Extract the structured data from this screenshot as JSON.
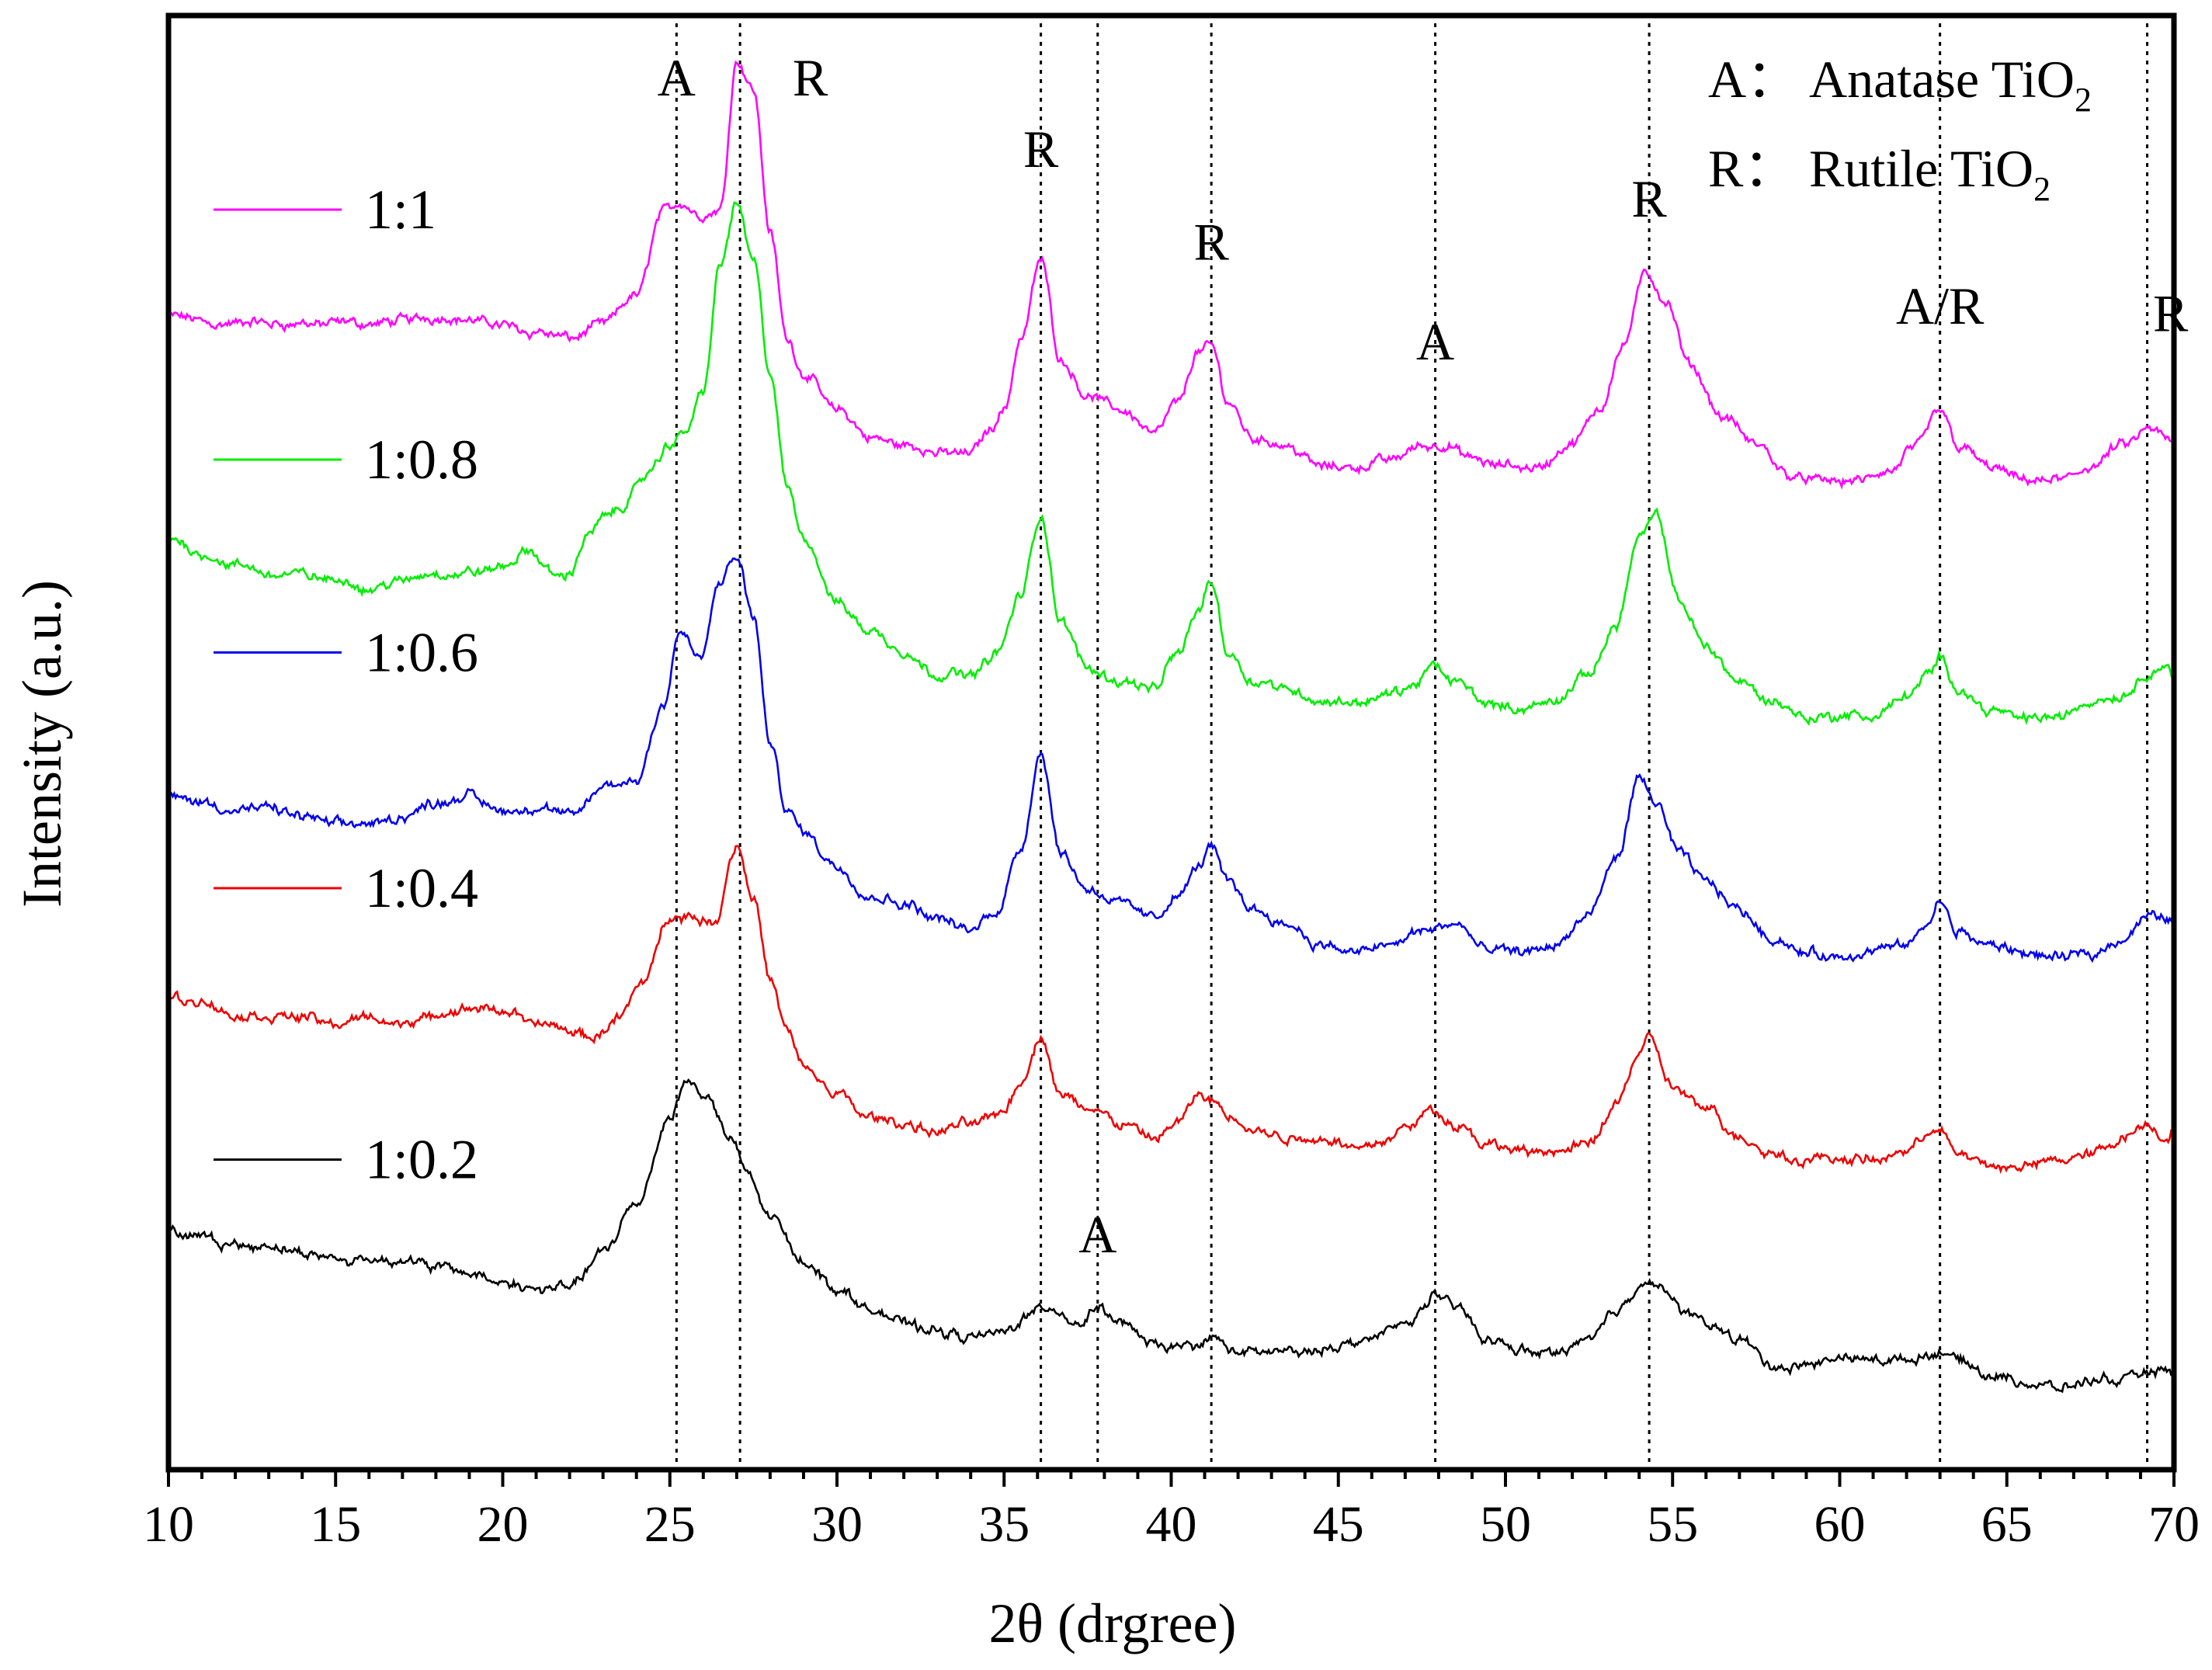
{
  "chart_data": {
    "type": "line",
    "xlabel": "2θ (drgree)",
    "ylabel": "Intensity (a.u.)",
    "xlim": [
      10,
      70
    ],
    "xticks": [
      10,
      15,
      20,
      25,
      30,
      35,
      40,
      45,
      50,
      55,
      60,
      65,
      70
    ],
    "ylim": [
      0,
      10
    ],
    "grid": false,
    "key": [
      {
        "symbol": "A",
        "sep": "：",
        "text": "Anatase TiO",
        "sub": "2"
      },
      {
        "symbol": "R",
        "sep": "：",
        "text": "Rutile TiO",
        "sub": "2"
      }
    ],
    "reference_lines": [
      25.2,
      27.1,
      36.1,
      37.8,
      41.2,
      47.9,
      54.3,
      63.0,
      69.2
    ],
    "peak_labels": [
      {
        "text": "A",
        "x": 25.2,
        "y": 9.55
      },
      {
        "text": "R",
        "x": 29.2,
        "y": 9.55
      },
      {
        "text": "R",
        "x": 36.1,
        "y": 9.05
      },
      {
        "text": "R",
        "x": 41.2,
        "y": 8.4
      },
      {
        "text": "A",
        "x": 47.9,
        "y": 7.7
      },
      {
        "text": "R",
        "x": 54.3,
        "y": 8.7
      },
      {
        "text": "A/R",
        "x": 63.0,
        "y": 7.95
      },
      {
        "text": "R",
        "x": 69.9,
        "y": 7.9
      },
      {
        "text": "A",
        "x": 37.8,
        "y": 1.45
      }
    ],
    "series": [
      {
        "name": "1:1",
        "color": "#ff00ff",
        "legend_y": 8.75,
        "x": [
          10,
          12,
          14,
          16,
          18,
          20,
          21,
          22,
          23,
          24,
          24.8,
          25.3,
          26,
          26.5,
          27,
          27.5,
          28,
          28.5,
          29,
          30,
          31,
          32,
          33,
          34,
          34.5,
          35,
          35.5,
          36.1,
          36.7,
          37.5,
          38.5,
          39.5,
          40.2,
          40.8,
          41.2,
          41.7,
          42.5,
          43.5,
          44.5,
          45.5,
          46.5,
          47.5,
          48.2,
          49,
          49.8,
          51,
          52,
          52.8,
          53.5,
          54.2,
          54.8,
          55.5,
          56.5,
          57.5,
          58.5,
          59.5,
          60.5,
          61.5,
          62.3,
          63,
          63.6,
          64.5,
          65.5,
          66.5,
          67.5,
          68.5,
          69.2,
          69.8,
          70
        ],
        "y": [
          8.0,
          7.95,
          7.95,
          7.95,
          8.0,
          7.95,
          7.9,
          7.85,
          7.95,
          8.15,
          8.75,
          8.8,
          8.7,
          8.75,
          9.8,
          9.6,
          8.6,
          7.85,
          7.6,
          7.35,
          7.15,
          7.1,
          7.05,
          7.05,
          7.2,
          7.35,
          7.85,
          8.4,
          7.7,
          7.45,
          7.35,
          7.2,
          7.4,
          7.75,
          7.8,
          7.4,
          7.15,
          7.1,
          6.95,
          6.95,
          7.0,
          7.1,
          7.1,
          7.0,
          6.95,
          6.95,
          7.1,
          7.35,
          7.8,
          8.3,
          8.1,
          7.65,
          7.3,
          7.1,
          6.9,
          6.85,
          6.85,
          6.9,
          7.1,
          7.35,
          7.1,
          6.95,
          6.85,
          6.85,
          6.95,
          7.1,
          7.2,
          7.15,
          7.1
        ]
      },
      {
        "name": "1:0.8",
        "color": "#00ee00",
        "legend_y": 7.0,
        "x": [
          10,
          11,
          12,
          13,
          14,
          15,
          16,
          17,
          18,
          19,
          20,
          20.8,
          21.5,
          22,
          22.5,
          23,
          23.5,
          24,
          24.5,
          25,
          25.5,
          26,
          26.5,
          27,
          27.5,
          28,
          28.5,
          29,
          30,
          31,
          32,
          33,
          34,
          34.8,
          35.5,
          36.1,
          36.7,
          37.5,
          38.5,
          39.5,
          40.2,
          40.8,
          41.2,
          41.7,
          42.5,
          43.5,
          44.5,
          45.5,
          46.5,
          47.2,
          47.8,
          48.5,
          49.5,
          50.5,
          51.5,
          52.5,
          53.3,
          54.0,
          54.5,
          55.2,
          56,
          57,
          58,
          59,
          60,
          61,
          62,
          62.7,
          63,
          63.5,
          64.5,
          65.5,
          66.5,
          67.5,
          68.5,
          69.2,
          69.7,
          70
        ],
        "y": [
          6.45,
          6.35,
          6.25,
          6.2,
          6.2,
          6.15,
          6.1,
          6.15,
          6.2,
          6.2,
          6.25,
          6.35,
          6.2,
          6.2,
          6.45,
          6.6,
          6.65,
          6.8,
          6.95,
          7.1,
          7.2,
          7.5,
          8.35,
          8.8,
          8.4,
          7.6,
          6.8,
          6.45,
          6.0,
          5.8,
          5.65,
          5.5,
          5.5,
          5.65,
          6.05,
          6.6,
          5.85,
          5.55,
          5.45,
          5.4,
          5.65,
          5.95,
          6.15,
          5.65,
          5.45,
          5.4,
          5.3,
          5.3,
          5.35,
          5.4,
          5.55,
          5.45,
          5.3,
          5.25,
          5.3,
          5.5,
          5.85,
          6.45,
          6.6,
          6.0,
          5.7,
          5.45,
          5.3,
          5.2,
          5.2,
          5.2,
          5.35,
          5.5,
          5.6,
          5.4,
          5.25,
          5.2,
          5.2,
          5.3,
          5.35,
          5.5,
          5.55,
          5.5
        ]
      },
      {
        "name": "1:0.6",
        "color": "#0000ee",
        "legend_y": 5.65,
        "x": [
          10,
          11,
          12,
          13,
          14,
          15,
          16,
          17,
          18,
          19,
          20,
          21,
          22,
          23,
          24,
          24.8,
          25.3,
          25.9,
          26.5,
          27,
          27.5,
          28,
          28.5,
          29,
          30,
          31,
          32,
          33,
          34,
          34.8,
          35.5,
          36.1,
          36.7,
          37.5,
          38.5,
          39.5,
          40.2,
          40.8,
          41.2,
          41.7,
          42.5,
          43.5,
          44.5,
          45.5,
          46.5,
          47.5,
          48.5,
          49.5,
          50.5,
          51.5,
          52.5,
          53.3,
          54.0,
          54.5,
          55.2,
          56,
          57,
          58,
          59,
          60,
          61,
          62,
          62.7,
          63,
          63.5,
          64.5,
          65.5,
          66.5,
          67.5,
          68.5,
          69.2,
          70
        ],
        "y": [
          4.65,
          4.6,
          4.55,
          4.55,
          4.5,
          4.45,
          4.45,
          4.5,
          4.6,
          4.65,
          4.55,
          4.55,
          4.5,
          4.7,
          4.75,
          5.3,
          5.8,
          5.6,
          6.15,
          6.3,
          5.9,
          5.0,
          4.55,
          4.4,
          4.15,
          3.95,
          3.9,
          3.8,
          3.7,
          3.85,
          4.3,
          4.95,
          4.25,
          4.0,
          3.9,
          3.8,
          3.95,
          4.15,
          4.3,
          4.05,
          3.85,
          3.75,
          3.6,
          3.55,
          3.6,
          3.7,
          3.75,
          3.55,
          3.55,
          3.6,
          3.8,
          4.2,
          4.75,
          4.6,
          4.25,
          4.05,
          3.85,
          3.65,
          3.55,
          3.5,
          3.55,
          3.6,
          3.75,
          3.9,
          3.7,
          3.6,
          3.55,
          3.5,
          3.55,
          3.65,
          3.8,
          3.8
        ]
      },
      {
        "name": "1:0.4",
        "color": "#ee0000",
        "legend_y": 4.0,
        "x": [
          10,
          11,
          12,
          13,
          14,
          15,
          16,
          17,
          18,
          19,
          20,
          21,
          22,
          22.7,
          23.5,
          24.2,
          25,
          25.6,
          26.3,
          27,
          27.5,
          28,
          28.5,
          29,
          30,
          31,
          32,
          33,
          34,
          35,
          35.5,
          36.1,
          36.7,
          37.5,
          38.5,
          39.5,
          40.2,
          40.8,
          41.2,
          41.8,
          42.5,
          43.5,
          44.5,
          45.5,
          46.5,
          47.2,
          47.8,
          48.5,
          49.5,
          50.5,
          51.5,
          52.5,
          53.3,
          54.0,
          54.3,
          55.0,
          56,
          57,
          58,
          59,
          60,
          61,
          62,
          62.7,
          63,
          63.5,
          64.5,
          65.5,
          66.5,
          67.5,
          68.5,
          69.2,
          69.7,
          70
        ],
        "y": [
          3.25,
          3.2,
          3.1,
          3.1,
          3.1,
          3.05,
          3.1,
          3.05,
          3.1,
          3.15,
          3.15,
          3.05,
          3.0,
          2.95,
          3.1,
          3.35,
          3.8,
          3.8,
          3.75,
          4.3,
          3.95,
          3.35,
          3.0,
          2.75,
          2.55,
          2.4,
          2.35,
          2.3,
          2.35,
          2.45,
          2.65,
          2.95,
          2.55,
          2.45,
          2.35,
          2.25,
          2.35,
          2.55,
          2.5,
          2.4,
          2.3,
          2.25,
          2.25,
          2.2,
          2.25,
          2.35,
          2.45,
          2.35,
          2.2,
          2.15,
          2.15,
          2.2,
          2.5,
          2.85,
          2.95,
          2.6,
          2.45,
          2.25,
          2.15,
          2.1,
          2.1,
          2.1,
          2.15,
          2.3,
          2.3,
          2.15,
          2.05,
          2.05,
          2.1,
          2.15,
          2.25,
          2.35,
          2.25,
          2.3
        ]
      },
      {
        "name": "1:0.2",
        "color": "#000000",
        "legend_y": 2.1,
        "x": [
          10,
          11,
          12,
          13,
          14,
          15,
          16,
          17,
          18,
          19,
          20,
          21,
          22,
          23,
          24,
          25,
          25.5,
          26.1,
          26.8,
          27.3,
          28,
          29,
          30,
          31,
          32,
          33,
          34,
          35,
          36,
          36.5,
          37.2,
          37.8,
          38.5,
          39.5,
          40.5,
          41.2,
          42,
          43,
          44,
          45,
          46,
          47,
          47.9,
          48.6,
          49.5,
          50.5,
          51.5,
          52.5,
          53.3,
          54.1,
          54.6,
          55.3,
          56,
          57,
          58,
          59,
          60,
          61,
          62,
          63,
          63.5,
          64.5,
          65.5,
          66.5,
          67.5,
          68.5,
          69.2,
          70
        ],
        "y": [
          1.6,
          1.55,
          1.5,
          1.5,
          1.45,
          1.4,
          1.4,
          1.4,
          1.35,
          1.3,
          1.25,
          1.2,
          1.2,
          1.45,
          1.8,
          2.4,
          2.65,
          2.55,
          2.25,
          2.0,
          1.7,
          1.4,
          1.2,
          1.05,
          0.95,
          0.9,
          0.85,
          0.9,
          1.05,
          1.05,
          0.95,
          1.05,
          0.95,
          0.8,
          0.8,
          0.85,
          0.75,
          0.75,
          0.75,
          0.8,
          0.85,
          0.95,
          1.15,
          1.05,
          0.85,
          0.75,
          0.75,
          0.85,
          1.05,
          1.25,
          1.2,
          1.05,
          0.95,
          0.85,
          0.65,
          0.65,
          0.7,
          0.7,
          0.7,
          0.75,
          0.7,
          0.6,
          0.55,
          0.5,
          0.55,
          0.55,
          0.6,
          0.6
        ]
      }
    ]
  }
}
